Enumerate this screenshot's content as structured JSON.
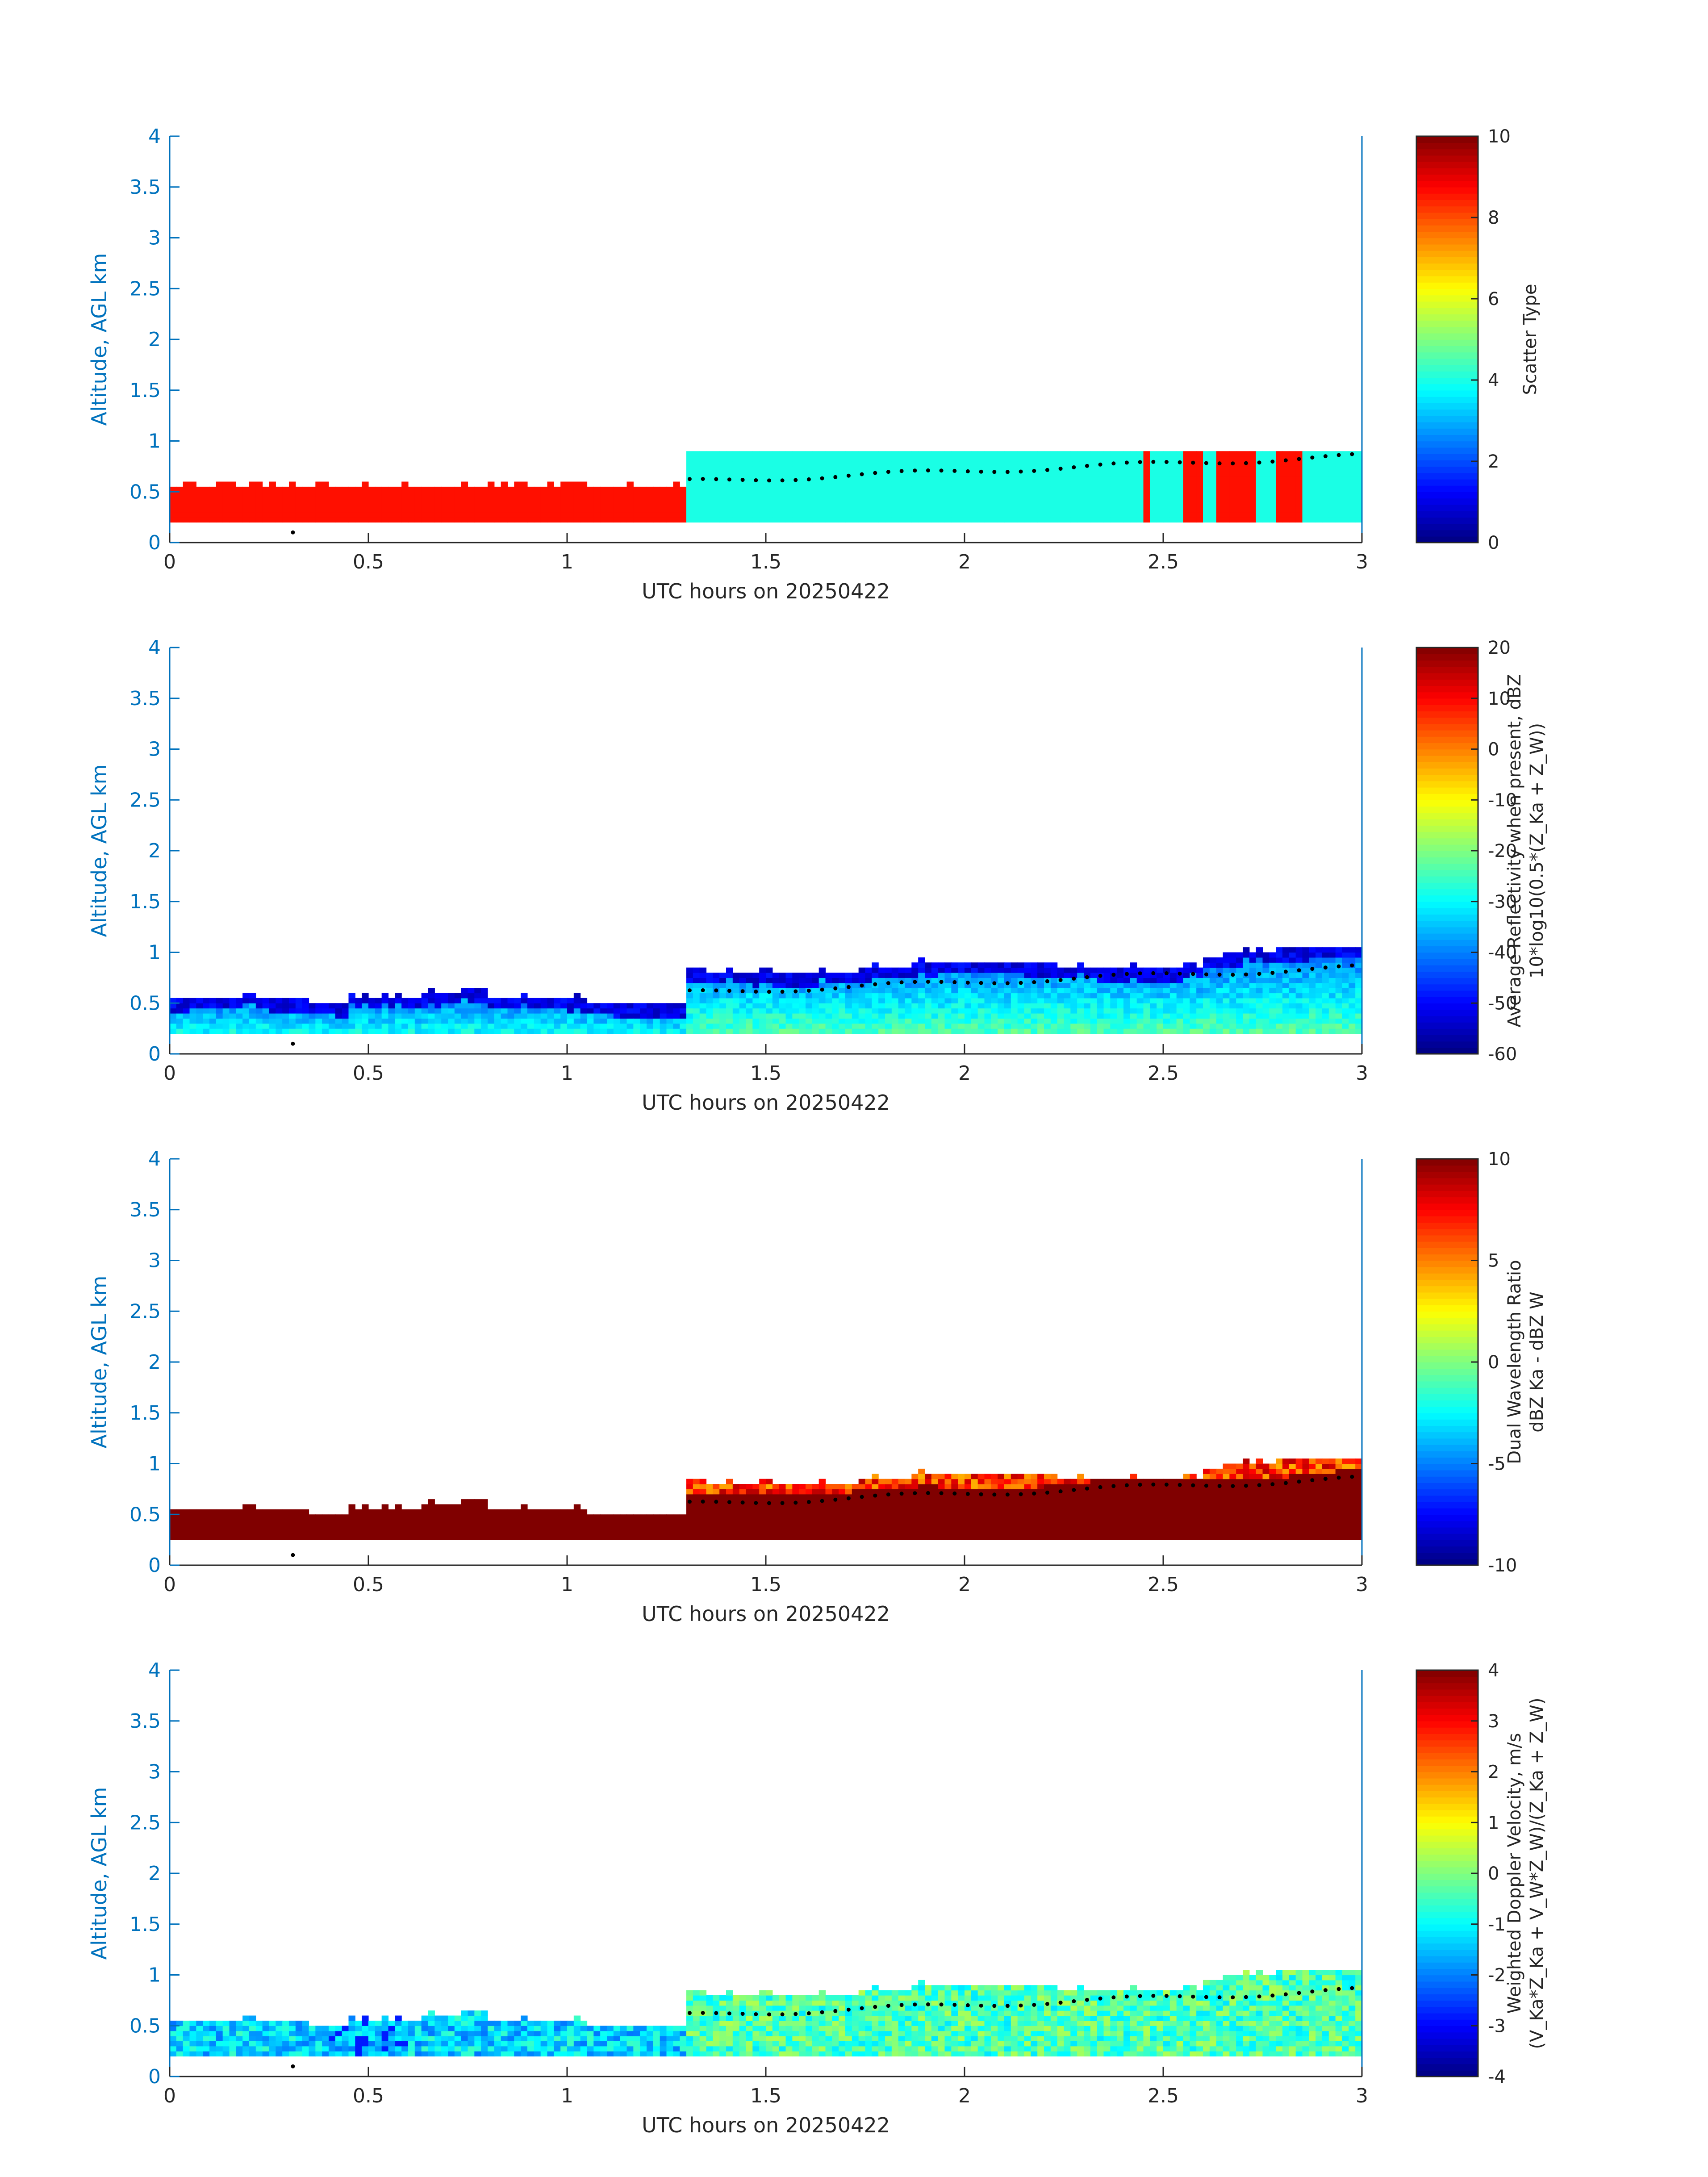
{
  "chart_data": [
    {
      "type": "heatmap",
      "title": "",
      "xlabel": "UTC hours on 20250422",
      "ylabel": "Altitude, AGL km",
      "xlim": [
        0,
        3
      ],
      "ylim": [
        0,
        4
      ],
      "x_ticks": [
        "0",
        "0.5",
        "1",
        "1.5",
        "2",
        "2.5",
        "3"
      ],
      "y_ticks": [
        "0",
        "0.5",
        "1",
        "1.5",
        "2",
        "2.5",
        "3",
        "3.5",
        "4"
      ],
      "colorbar": {
        "label_lines": [
          "Scatter Type"
        ],
        "range": [
          0,
          10
        ],
        "ticks": [
          "0",
          "2",
          "4",
          "6",
          "8",
          "10"
        ],
        "colormap": "jet"
      },
      "field": "scatter_type",
      "cloud_base_marker_color": "#000000"
    },
    {
      "type": "heatmap",
      "title": "",
      "xlabel": "UTC hours on 20250422",
      "ylabel": "Altitude, AGL km",
      "xlim": [
        0,
        3
      ],
      "ylim": [
        0,
        4
      ],
      "x_ticks": [
        "0",
        "0.5",
        "1",
        "1.5",
        "2",
        "2.5",
        "3"
      ],
      "y_ticks": [
        "0",
        "0.5",
        "1",
        "1.5",
        "2",
        "2.5",
        "3",
        "3.5",
        "4"
      ],
      "colorbar": {
        "label_lines": [
          "Average Reflectivity when present, dBZ",
          "10*log10(0.5*(Z_Ka + Z_W))"
        ],
        "range": [
          -60,
          20
        ],
        "ticks": [
          "-60",
          "-50",
          "-40",
          "-30",
          "-20",
          "-10",
          "0",
          "10",
          "20"
        ],
        "colormap": "jet"
      },
      "field": "reflectivity",
      "cloud_base_marker_color": "#000000"
    },
    {
      "type": "heatmap",
      "title": "",
      "xlabel": "UTC hours on 20250422",
      "ylabel": "Altitude, AGL km",
      "xlim": [
        0,
        3
      ],
      "ylim": [
        0,
        4
      ],
      "x_ticks": [
        "0",
        "0.5",
        "1",
        "1.5",
        "2",
        "2.5",
        "3"
      ],
      "y_ticks": [
        "0",
        "0.5",
        "1",
        "1.5",
        "2",
        "2.5",
        "3",
        "3.5",
        "4"
      ],
      "colorbar": {
        "label_lines": [
          "Dual Wavelength Ratio",
          "dBZ Ka - dBZ W"
        ],
        "range": [
          -10,
          10
        ],
        "ticks": [
          "-10",
          "-5",
          "0",
          "5",
          "10"
        ],
        "colormap": "jet"
      },
      "field": "dwr",
      "cloud_base_marker_color": "#000000"
    },
    {
      "type": "heatmap",
      "title": "",
      "xlabel": "UTC hours on 20250422",
      "ylabel": "Altitude, AGL km",
      "xlim": [
        0,
        3
      ],
      "ylim": [
        0,
        4
      ],
      "x_ticks": [
        "0",
        "0.5",
        "1",
        "1.5",
        "2",
        "2.5",
        "3"
      ],
      "y_ticks": [
        "0",
        "0.5",
        "1",
        "1.5",
        "2",
        "2.5",
        "3",
        "3.5",
        "4"
      ],
      "colorbar": {
        "label_lines": [
          "Weighted Doppler Velocity, m/s",
          "(V_Ka*Z_Ka + V_W*Z_W)/(Z_Ka + Z_W)"
        ],
        "range": [
          -4,
          4
        ],
        "ticks": [
          "-4",
          "-3",
          "-2",
          "-1",
          "0",
          "1",
          "2",
          "3",
          "4"
        ],
        "colormap": "jet"
      },
      "field": "doppler_velocity",
      "cloud_base_marker_color": "#000000"
    }
  ],
  "colors": {
    "axis": "#0072bd",
    "label_text": "#262626",
    "scatter_low_hours": "#ff4500",
    "scatter_high_hours": "#2ff8e0"
  }
}
